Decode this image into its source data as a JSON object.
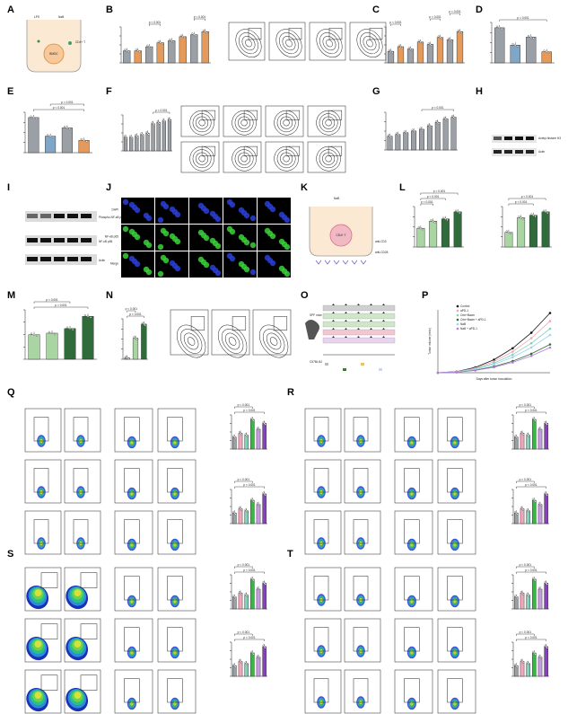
{
  "figure": {
    "panel_letters": [
      "A",
      "B",
      "C",
      "D",
      "E",
      "F",
      "G",
      "H",
      "I",
      "J",
      "K",
      "L",
      "M",
      "N",
      "O",
      "P",
      "Q",
      "R",
      "S",
      "T"
    ],
    "colors": {
      "bar_gray": "#9aa0a6",
      "bar_orange": "#e39a5a",
      "bar_blue": "#7fa6c7",
      "bar_green": "#a8d5a2",
      "bar_darkgreen": "#2f6b3b",
      "flow_green": "#3db34a",
      "flow_blue": "#3c5fd6",
      "flow_teal": "#55c3a8",
      "pink": "#f2a7b8",
      "purple": "#b57bd6",
      "confocal_green": "#39d23a",
      "confocal_blue": "#2a3fd6"
    },
    "pvalue_text": "p < 0.001",
    "legend_groups": [
      "Control",
      "aPD-1",
      "Crtn+Bacm",
      "Crtn+Bacm + aPD-1",
      "NaB",
      "NaB + aPD-1"
    ],
    "panels": {
      "A": {
        "labels": [
          "LPS",
          "NaB",
          "CD4+ T",
          "BMDC"
        ]
      },
      "J": {
        "row_labels": [
          "DAPI",
          "NF-κB p65",
          "Merge"
        ],
        "col_labels": [
          "PBS",
          "NaB",
          "LPS",
          "NaB+LPS",
          "LPS+PDTC"
        ]
      },
      "K": {
        "labels": [
          "NaB",
          "CD4+ T",
          "anti-CD3",
          "anti-CD28"
        ]
      },
      "O": {
        "labels": [
          "SPF mice",
          "C57BL/6J"
        ]
      },
      "P": {
        "xlabel": "Days after tumor inoculation",
        "ylabel": "Tumor volume (mm³)"
      },
      "H": {
        "labels": [
          "Acetyl-histone H3",
          "Actin"
        ]
      },
      "I": {
        "labels": [
          "Phospho-NF-κB p65",
          "NF-κB p65",
          "Actin"
        ]
      }
    }
  }
}
